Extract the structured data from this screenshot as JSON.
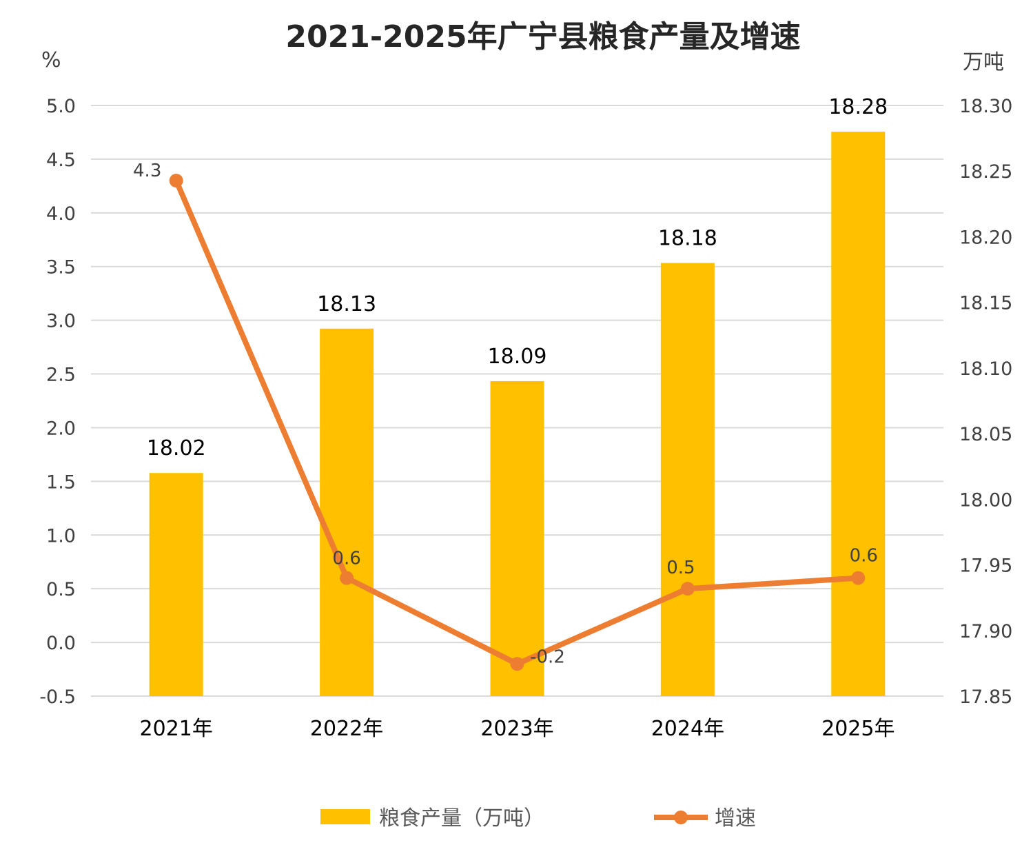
{
  "chart_data": {
    "type": "bar",
    "title": "2021-2025年广宁县粮食产量及增速",
    "categories": [
      "2021年",
      "2022年",
      "2023年",
      "2024年",
      "2025年"
    ],
    "y_left": {
      "unit": "%",
      "min": -0.5,
      "max": 5.0,
      "step": 0.5,
      "ticks": [
        "5.0",
        "4.5",
        "4.0",
        "3.5",
        "3.0",
        "2.5",
        "2.0",
        "1.5",
        "1.0",
        "0.5",
        "0.0",
        "-0.5"
      ]
    },
    "y_right": {
      "unit": "万吨",
      "min": 17.85,
      "max": 18.3,
      "step": 0.05,
      "ticks": [
        "18.30",
        "18.25",
        "18.20",
        "18.15",
        "18.10",
        "18.05",
        "18.00",
        "17.95",
        "17.90",
        "17.85"
      ]
    },
    "series": [
      {
        "name": "粮食产量（万吨）",
        "type": "bar",
        "axis": "right",
        "values": [
          18.02,
          18.13,
          18.09,
          18.18,
          18.28
        ],
        "labels": [
          "18.02",
          "18.13",
          "18.09",
          "18.18",
          "18.28"
        ],
        "color": "#FFC000"
      },
      {
        "name": "增速",
        "type": "line",
        "axis": "left",
        "values": [
          4.3,
          0.6,
          -0.2,
          0.5,
          0.6
        ],
        "labels": [
          "4.3",
          "0.6",
          "-0.2",
          "0.5",
          "0.6"
        ],
        "color": "#ED7D31"
      }
    ],
    "negative_color": "#FF0000",
    "grid": true,
    "legend": "bottom"
  }
}
